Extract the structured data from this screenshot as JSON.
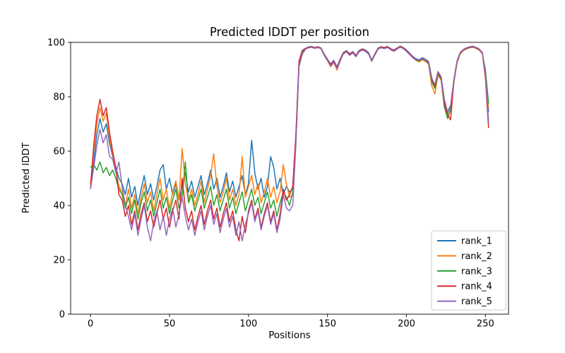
{
  "chart_data": {
    "type": "line",
    "title": "Predicted lDDT per position",
    "xlabel": "Positions",
    "ylabel": "Predicted lDDT",
    "xlim": [
      -12.6,
      264.6
    ],
    "ylim": [
      0,
      100
    ],
    "x_ticks": [
      0,
      50,
      100,
      150,
      200,
      250
    ],
    "y_ticks": [
      0,
      20,
      40,
      60,
      80,
      100
    ],
    "grid": false,
    "legend_position": "lower right",
    "x_start": 0,
    "x_step": 2,
    "axis_color": "#000000",
    "legend_border_color": "#cccccc",
    "series": [
      {
        "name": "rank_1",
        "color": "#1f77b4",
        "values": [
          46,
          56,
          66,
          72,
          67,
          70,
          63,
          58,
          54,
          50,
          48,
          44,
          50,
          43,
          47,
          40,
          46,
          51,
          44,
          48,
          42,
          47,
          53,
          55,
          46,
          50,
          44,
          48,
          42,
          47,
          52,
          45,
          49,
          43,
          47,
          51,
          44,
          48,
          53,
          46,
          50,
          43,
          47,
          52,
          45,
          49,
          43,
          47,
          51,
          44,
          48,
          64,
          52,
          46,
          50,
          43,
          47,
          58,
          54,
          46,
          50,
          44,
          47,
          45,
          46,
          65,
          93,
          97,
          97.8,
          98.3,
          98.5,
          98.1,
          98.4,
          97.9,
          95.6,
          93.8,
          92,
          93.4,
          91,
          93.8,
          96.2,
          97,
          95.8,
          96.6,
          95.2,
          97,
          97.6,
          97.2,
          96.2,
          93.5,
          95.8,
          97.9,
          98.4,
          98.1,
          98.5,
          97.7,
          97.2,
          97.9,
          98.6,
          98.1,
          97.2,
          96,
          94.8,
          94,
          93.6,
          94.4,
          93.8,
          93,
          87,
          83.5,
          89,
          87,
          78,
          74,
          76.5,
          86,
          93,
          96.2,
          97.3,
          97.9,
          98.3,
          98.5,
          98.1,
          97.5,
          96.2,
          89,
          74.5
        ]
      },
      {
        "name": "rank_2",
        "color": "#ff7f0e",
        "values": [
          48,
          60,
          70,
          76,
          71,
          74,
          65,
          59,
          53,
          47,
          45,
          40,
          46,
          39,
          44,
          37,
          43,
          48,
          41,
          45,
          38,
          44,
          50,
          42,
          46,
          39,
          45,
          49,
          42,
          61,
          48,
          42,
          46,
          40,
          44,
          49,
          41,
          46,
          51,
          59,
          47,
          41,
          45,
          50,
          42,
          46,
          40,
          44,
          58,
          43,
          47,
          51,
          44,
          48,
          41,
          45,
          50,
          43,
          47,
          41,
          45,
          55,
          48,
          43,
          44,
          63,
          92,
          96.5,
          97.4,
          98,
          98.2,
          97.8,
          98.1,
          97.6,
          95.2,
          93.2,
          91,
          92.6,
          89.8,
          93,
          95.8,
          96.6,
          95.2,
          96.2,
          94.8,
          96.6,
          97.3,
          96.8,
          95.8,
          93,
          95.4,
          97.6,
          98.1,
          97.8,
          98.2,
          97.4,
          96.8,
          97.6,
          98.3,
          97.8,
          96.8,
          95.6,
          94.4,
          93.4,
          92.8,
          93.6,
          93,
          92,
          84,
          81,
          88,
          86,
          76,
          72.5,
          75.5,
          85,
          92.4,
          95.8,
          97,
          97.6,
          98,
          98.2,
          97.8,
          97.2,
          95.8,
          88,
          76
        ]
      },
      {
        "name": "rank_3",
        "color": "#2ca02c",
        "values": [
          54,
          55,
          53,
          56,
          52,
          54,
          51,
          53,
          50,
          46,
          44,
          39,
          43,
          37,
          42,
          35,
          41,
          45,
          38,
          42,
          36,
          41,
          46,
          39,
          43,
          37,
          42,
          46,
          39,
          43,
          56,
          41,
          44,
          38,
          42,
          46,
          39,
          43,
          47,
          40,
          44,
          38,
          42,
          46,
          39,
          43,
          37,
          41,
          45,
          38,
          42,
          46,
          40,
          43,
          37,
          41,
          45,
          39,
          42,
          36,
          41,
          45,
          43,
          40,
          45,
          64,
          93,
          96.5,
          97.6,
          98.1,
          98.3,
          97.9,
          98.2,
          97.7,
          95.3,
          93.4,
          91.6,
          93,
          90.4,
          93.4,
          95.9,
          96.7,
          95.4,
          96.3,
          94.9,
          96.7,
          97.4,
          96.9,
          95.9,
          93.1,
          95.5,
          97.7,
          98.2,
          97.9,
          98.3,
          97.5,
          96.9,
          97.7,
          98.4,
          97.9,
          96.9,
          95.7,
          94.5,
          93.5,
          93.1,
          93.9,
          93.3,
          92.3,
          85.5,
          83,
          88.4,
          86.4,
          76.5,
          72,
          75,
          85.5,
          92.7,
          96,
          97.1,
          97.7,
          98.1,
          98.3,
          97.9,
          97.3,
          96,
          90,
          77.5
        ]
      },
      {
        "name": "rank_4",
        "color": "#d62728",
        "values": [
          47,
          62,
          73,
          79,
          73,
          76,
          67,
          60,
          54,
          44,
          42,
          36,
          40,
          33,
          38,
          31,
          37,
          41,
          34,
          38,
          32,
          37,
          42,
          35,
          39,
          32,
          38,
          42,
          35,
          50,
          39,
          34,
          38,
          31,
          36,
          40,
          33,
          38,
          42,
          35,
          39,
          32,
          37,
          41,
          34,
          38,
          31,
          27,
          36,
          30,
          38,
          42,
          35,
          39,
          32,
          37,
          41,
          34,
          38,
          31,
          37,
          46,
          42,
          44,
          47,
          66,
          93,
          96.8,
          97.7,
          98.2,
          98.4,
          98,
          98.3,
          97.8,
          95.4,
          93.6,
          91.8,
          93.2,
          90.6,
          93.6,
          96,
          96.8,
          95.6,
          96.4,
          95,
          96.8,
          97.5,
          97,
          96,
          93.3,
          95.6,
          97.8,
          98.3,
          98,
          98.4,
          97.6,
          97,
          97.8,
          98.5,
          98,
          97,
          95.8,
          94.6,
          93.7,
          93.3,
          94.1,
          93.5,
          92.6,
          86.5,
          83.8,
          88.8,
          86.8,
          77.5,
          73.5,
          71.5,
          85.8,
          92.9,
          96.1,
          97.2,
          97.8,
          98.2,
          98.4,
          98,
          97.4,
          96.1,
          87,
          68.5
        ]
      },
      {
        "name": "rank_5",
        "color": "#9467bd",
        "values": [
          46,
          54,
          62,
          68,
          63,
          66,
          58,
          57,
          52,
          56,
          47,
          40,
          36,
          31,
          37,
          29,
          35,
          40,
          32,
          27,
          34,
          38,
          31,
          36,
          29,
          35,
          39,
          32,
          37,
          43,
          36,
          31,
          35,
          29,
          34,
          38,
          31,
          36,
          40,
          33,
          37,
          30,
          35,
          39,
          32,
          36,
          29,
          34,
          27,
          33,
          37,
          41,
          34,
          38,
          31,
          36,
          40,
          33,
          37,
          30,
          35,
          44,
          39,
          38,
          40,
          62,
          91,
          95.5,
          97.5,
          98,
          98.2,
          97.8,
          98.1,
          97.6,
          95.1,
          93.3,
          91.3,
          92.8,
          90.2,
          93.2,
          95.7,
          96.5,
          95.3,
          96.1,
          94.7,
          96.5,
          97.2,
          96.7,
          95.7,
          93.4,
          95.3,
          97.5,
          98,
          97.7,
          98.1,
          97.3,
          96.7,
          97.5,
          98.2,
          97.7,
          96.7,
          95.5,
          94.3,
          93.8,
          93.4,
          94.2,
          93.6,
          92.8,
          86.8,
          84.5,
          89.3,
          87.3,
          79,
          74.5,
          77,
          86.3,
          93.2,
          96.3,
          97.4,
          98,
          98.4,
          98.6,
          98.2,
          97.6,
          96.3,
          88.5,
          71
        ]
      }
    ]
  }
}
